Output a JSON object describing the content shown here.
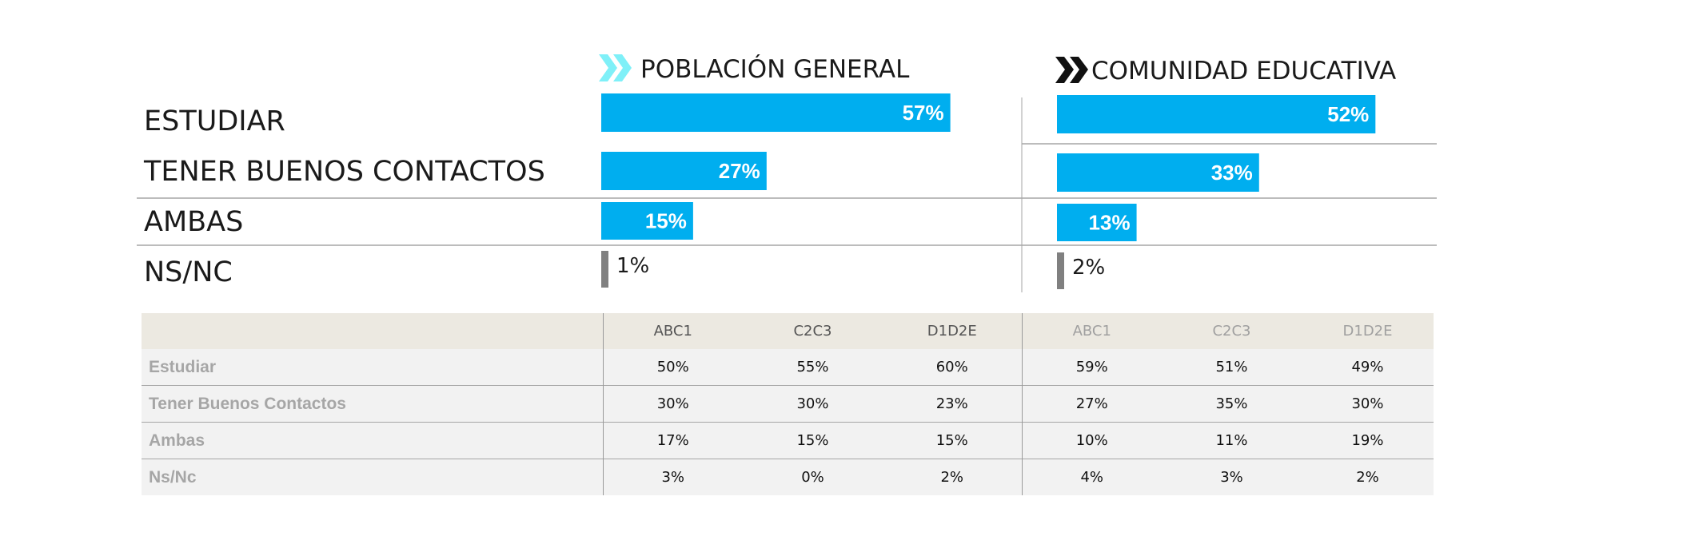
{
  "colors": {
    "accent_bar": "#00aeef",
    "ns_bar": "#808080",
    "chevron_light": "#7ff0f8",
    "chevron_dark": "#111111",
    "table_header_bg": "#ece9e1",
    "table_body_bg": "#f2f2f2"
  },
  "icons": {
    "pg_chevron": "double-chevron-light-cyan-icon",
    "ce_chevron": "double-chevron-black-icon"
  },
  "chart_data": {
    "type": "bar",
    "orientation": "horizontal",
    "categories": [
      "ESTUDIAR",
      "TENER BUENOS CONTACTOS",
      "AMBAS",
      "NS/NC"
    ],
    "series": [
      {
        "name": "POBLACIÓN GENERAL",
        "values": [
          57,
          27,
          15,
          1
        ],
        "labels": [
          "57%",
          "27%",
          "15%",
          "1%"
        ]
      },
      {
        "name": "COMUNIDAD EDUCATIVA",
        "values": [
          52,
          33,
          13,
          2
        ],
        "labels": [
          "52%",
          "33%",
          "13%",
          "2%"
        ]
      }
    ],
    "unit": "%",
    "xlim": [
      0,
      100
    ],
    "grid": false,
    "legend": "top"
  },
  "table": {
    "columns": [
      "ABC1",
      "C2C3",
      "D1D2E",
      "ABC1",
      "C2C3",
      "D1D2E"
    ],
    "rows": [
      {
        "label": "Estudiar",
        "values": [
          "50%",
          "55%",
          "60%",
          "59%",
          "51%",
          "49%"
        ]
      },
      {
        "label": "Tener Buenos Contactos",
        "values": [
          "30%",
          "30%",
          "23%",
          "27%",
          "35%",
          "30%"
        ]
      },
      {
        "label": "Ambas",
        "values": [
          "17%",
          "15%",
          "15%",
          "10%",
          "11%",
          "19%"
        ]
      },
      {
        "label": "Ns/Nc",
        "values": [
          "3%",
          "0%",
          "2%",
          "4%",
          "3%",
          "2%"
        ]
      }
    ]
  }
}
